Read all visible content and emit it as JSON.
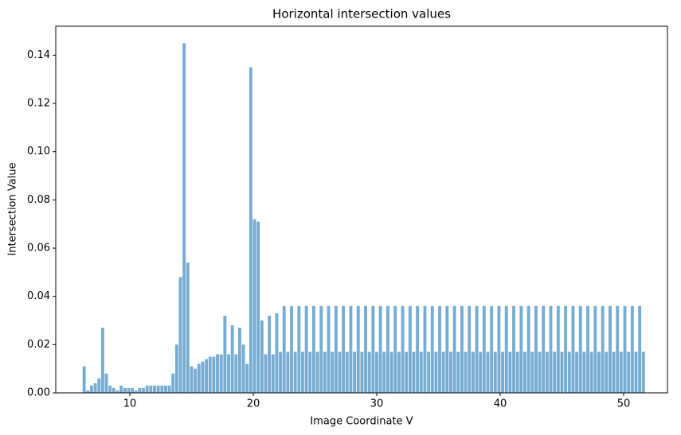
{
  "chart_data": {
    "type": "bar",
    "title": "Horizontal intersection values",
    "x_label": "Image Coordinate V",
    "y_label": "Intersection Value",
    "color": "#76acd2",
    "x": [
      6.3,
      6.6,
      6.9,
      7.2,
      7.5,
      7.8,
      8.1,
      8.4,
      8.7,
      9,
      9.3,
      9.6,
      9.9,
      10.2,
      10.5,
      10.8,
      11.1,
      11.4,
      11.7,
      12,
      12.3,
      12.6,
      12.9,
      13.2,
      13.5,
      13.8,
      14.1,
      14.4,
      14.7,
      15,
      15.3,
      15.6,
      15.9,
      16.2,
      16.5,
      16.8,
      17.1,
      17.4,
      17.7,
      18,
      18.3,
      18.6,
      18.9,
      19.2,
      19.5,
      19.8,
      20.1,
      20.4,
      20.7,
      21,
      21.3,
      21.6,
      21.9,
      22.2,
      22.5,
      22.8,
      23.1,
      23.4,
      23.7,
      24,
      24.3,
      24.6,
      24.9,
      25.2,
      25.5,
      25.8,
      26.1,
      26.4,
      26.7,
      27,
      27.3,
      27.6,
      27.9,
      28.2,
      28.5,
      28.8,
      29.1,
      29.4,
      29.7,
      30,
      30.3,
      30.6,
      30.9,
      31.2,
      31.5,
      31.8,
      32.1,
      32.4,
      32.7,
      33,
      33.3,
      33.6,
      33.9,
      34.2,
      34.5,
      34.8,
      35.1,
      35.4,
      35.7,
      36,
      36.3,
      36.6,
      36.9,
      37.2,
      37.5,
      37.8,
      38.1,
      38.4,
      38.7,
      39,
      39.3,
      39.6,
      39.9,
      40.2,
      40.5,
      40.8,
      41.1,
      41.4,
      41.7,
      42,
      42.3,
      42.6,
      42.9,
      43.2,
      43.5,
      43.8,
      44.1,
      44.4,
      44.7,
      45,
      45.3,
      45.6,
      45.9,
      46.2,
      46.5,
      46.8,
      47.1,
      47.4,
      47.7,
      48,
      48.3,
      48.6,
      48.9,
      49.2,
      49.5,
      49.8,
      50.1,
      50.4,
      50.7,
      51,
      51.3,
      51.6
    ],
    "values": [
      0.011,
      0.001,
      0.003,
      0.004,
      0.006,
      0.027,
      0.008,
      0.003,
      0.002,
      0.001,
      0.003,
      0.002,
      0.002,
      0.002,
      0.001,
      0.002,
      0.002,
      0.003,
      0.003,
      0.003,
      0.003,
      0.003,
      0.003,
      0.003,
      0.008,
      0.02,
      0.048,
      0.145,
      0.054,
      0.011,
      0.01,
      0.012,
      0.013,
      0.014,
      0.015,
      0.015,
      0.016,
      0.016,
      0.032,
      0.016,
      0.028,
      0.016,
      0.027,
      0.02,
      0.012,
      0.135,
      0.072,
      0.071,
      0.03,
      0.016,
      0.032,
      0.016,
      0.033,
      0.017,
      0.036,
      0.017,
      0.036,
      0.017,
      0.036,
      0.017,
      0.036,
      0.017,
      0.036,
      0.017,
      0.036,
      0.017,
      0.036,
      0.017,
      0.036,
      0.017,
      0.036,
      0.017,
      0.036,
      0.017,
      0.036,
      0.017,
      0.036,
      0.017,
      0.036,
      0.017,
      0.036,
      0.017,
      0.036,
      0.017,
      0.036,
      0.017,
      0.036,
      0.017,
      0.036,
      0.017,
      0.036,
      0.017,
      0.036,
      0.017,
      0.036,
      0.017,
      0.036,
      0.017,
      0.036,
      0.017,
      0.036,
      0.017,
      0.036,
      0.017,
      0.036,
      0.017,
      0.036,
      0.017,
      0.036,
      0.017,
      0.036,
      0.017,
      0.036,
      0.017,
      0.036,
      0.017,
      0.036,
      0.017,
      0.036,
      0.017,
      0.036,
      0.017,
      0.036,
      0.017,
      0.036,
      0.017,
      0.036,
      0.017,
      0.036,
      0.017,
      0.036,
      0.017,
      0.036,
      0.017,
      0.036,
      0.017,
      0.036,
      0.017,
      0.036,
      0.017,
      0.036,
      0.017,
      0.036,
      0.017,
      0.036,
      0.017,
      0.036,
      0.017,
      0.036,
      0.017,
      0.036,
      0.017
    ],
    "xlim": [
      4.0,
      53.55
    ],
    "xticks": [
      10,
      20,
      30,
      40,
      50
    ],
    "ylim": [
      0,
      0.152
    ],
    "yticks": [
      {
        "value": 0,
        "label": "0.00"
      },
      0.02,
      0.04,
      0.06,
      0.08,
      {
        "value": 0.1,
        "label": "0.10"
      },
      0.12,
      0.14
    ]
  }
}
